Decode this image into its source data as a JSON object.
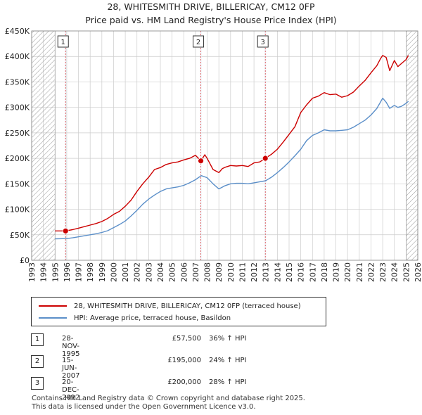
{
  "title_line1": "28, WHITESMITH DRIVE, BILLERICAY, CM12 0FP",
  "title_line2": "Price paid vs. HM Land Registry's House Price Index (HPI)",
  "colors": {
    "red": "#cc0000",
    "blue": "#5b8fc9",
    "grid": "#cccccc",
    "hatch": "#9a9a9a",
    "shade": "#eef2f8"
  },
  "legend": {
    "red_label": "28, WHITESMITH DRIVE, BILLERICAY, CM12 0FP (terraced house)",
    "blue_label": "HPI: Average price, terraced house, Basildon"
  },
  "transactions": [
    {
      "num": "1",
      "date": "28-NOV-1995",
      "price": "£57,500",
      "hpi": "36% ↑ HPI"
    },
    {
      "num": "2",
      "date": "15-JUN-2007",
      "price": "£195,000",
      "hpi": "24% ↑ HPI"
    },
    {
      "num": "3",
      "date": "20-DEC-2012",
      "price": "£200,000",
      "hpi": "28% ↑ HPI"
    }
  ],
  "footer_line1": "Contains HM Land Registry data © Crown copyright and database right 2025.",
  "footer_line2": "This data is licensed under the Open Government Licence v3.0.",
  "chart_data": {
    "type": "line",
    "title": "28, WHITESMITH DRIVE, BILLERICAY, CM12 0FP — Price paid vs. HM Land Registry's House Price Index (HPI)",
    "xlabel": "",
    "ylabel": "",
    "xlim": [
      1993.0,
      2026.0
    ],
    "ylim": [
      0,
      450000
    ],
    "grid": true,
    "legend_position": "below",
    "y_ticks": [
      0,
      50000,
      100000,
      150000,
      200000,
      250000,
      300000,
      350000,
      400000,
      450000
    ],
    "y_tick_labels": [
      "£0",
      "£50K",
      "£100K",
      "£150K",
      "£200K",
      "£250K",
      "£300K",
      "£350K",
      "£400K",
      "£450K"
    ],
    "x_ticks": [
      1993,
      1994,
      1995,
      1996,
      1997,
      1998,
      1999,
      2000,
      2001,
      2002,
      2003,
      2004,
      2005,
      2006,
      2007,
      2008,
      2009,
      2010,
      2011,
      2012,
      2013,
      2014,
      2015,
      2016,
      2017,
      2018,
      2019,
      2020,
      2021,
      2022,
      2023,
      2024,
      2025,
      2026
    ],
    "x_tick_labels": [
      "1993",
      "1994",
      "1995",
      "1996",
      "1997",
      "1998",
      "1999",
      "2000",
      "2001",
      "2002",
      "2003",
      "2004",
      "2005",
      "2006",
      "2007",
      "2008",
      "2009",
      "2010",
      "2011",
      "2012",
      "2013",
      "2014",
      "2015",
      "2016",
      "2017",
      "2018",
      "2019",
      "2020",
      "2021",
      "2022",
      "2023",
      "2024",
      "2025",
      "2026"
    ],
    "hatched_ranges": [
      [
        1993.0,
        1995.0
      ],
      [
        2025.0,
        2026.0
      ]
    ],
    "series": [
      {
        "name": "28, WHITESMITH DRIVE, BILLERICAY, CM12 0FP (terraced house)",
        "color": "#cc0000",
        "x": [
          1995.0,
          1995.9,
          1996.5,
          1997.0,
          1997.5,
          1998.0,
          1998.5,
          1999.0,
          1999.5,
          2000.0,
          2000.5,
          2001.0,
          2001.5,
          2002.0,
          2002.5,
          2003.0,
          2003.5,
          2004.0,
          2004.5,
          2005.0,
          2005.5,
          2006.0,
          2006.5,
          2007.0,
          2007.46,
          2007.8,
          2008.0,
          2008.5,
          2009.0,
          2009.3,
          2009.6,
          2010.0,
          2010.5,
          2011.0,
          2011.5,
          2012.0,
          2012.5,
          2012.97,
          2013.5,
          2014.0,
          2014.5,
          2015.0,
          2015.5,
          2016.0,
          2016.5,
          2017.0,
          2017.5,
          2018.0,
          2018.5,
          2019.0,
          2019.5,
          2020.0,
          2020.5,
          2021.0,
          2021.5,
          2022.0,
          2022.5,
          2022.8,
          2023.0,
          2023.3,
          2023.6,
          2024.0,
          2024.3,
          2024.6,
          2025.0,
          2025.2
        ],
        "values": [
          57500,
          57500,
          60000,
          63000,
          66000,
          69000,
          72000,
          76000,
          82000,
          90000,
          96000,
          106000,
          118000,
          135000,
          150000,
          163000,
          178000,
          182000,
          188000,
          191000,
          193000,
          197000,
          200000,
          206000,
          195000,
          207000,
          200000,
          178000,
          172000,
          180000,
          183000,
          186000,
          185000,
          186000,
          184000,
          191000,
          193000,
          200000,
          208000,
          218000,
          232000,
          247000,
          262000,
          290000,
          305000,
          318000,
          322000,
          329000,
          325000,
          326000,
          320000,
          323000,
          330000,
          342000,
          353000,
          368000,
          382000,
          395000,
          402000,
          398000,
          372000,
          392000,
          380000,
          386000,
          394000,
          402000
        ]
      },
      {
        "name": "HPI: Average price, terraced house, Basildon",
        "color": "#5b8fc9",
        "x": [
          1995.0,
          1996.0,
          1996.5,
          1997.0,
          1997.5,
          1998.0,
          1998.5,
          1999.0,
          1999.5,
          2000.0,
          2000.5,
          2001.0,
          2001.5,
          2002.0,
          2002.5,
          2003.0,
          2003.5,
          2004.0,
          2004.5,
          2005.0,
          2005.5,
          2006.0,
          2006.5,
          2007.0,
          2007.5,
          2008.0,
          2008.5,
          2009.0,
          2009.5,
          2010.0,
          2010.5,
          2011.0,
          2011.5,
          2012.0,
          2012.5,
          2013.0,
          2013.5,
          2014.0,
          2014.5,
          2015.0,
          2015.5,
          2016.0,
          2016.5,
          2017.0,
          2017.5,
          2018.0,
          2018.5,
          2019.0,
          2019.5,
          2020.0,
          2020.5,
          2021.0,
          2021.5,
          2022.0,
          2022.5,
          2022.8,
          2023.0,
          2023.3,
          2023.6,
          2024.0,
          2024.3,
          2024.6,
          2025.0,
          2025.2
        ],
        "values": [
          42000,
          42500,
          44000,
          46000,
          48000,
          50000,
          52000,
          54500,
          58000,
          64000,
          70000,
          77000,
          87000,
          98000,
          110000,
          120000,
          128000,
          135000,
          140000,
          142000,
          144000,
          147000,
          152000,
          158000,
          166000,
          162000,
          150000,
          140000,
          146000,
          150000,
          151000,
          151000,
          150000,
          152000,
          154000,
          156000,
          163000,
          172000,
          182000,
          193000,
          205000,
          218000,
          235000,
          245000,
          250000,
          256000,
          254000,
          254000,
          255000,
          256000,
          261000,
          268000,
          275000,
          285000,
          298000,
          310000,
          318000,
          310000,
          298000,
          304000,
          300000,
          302000,
          308000,
          312000
        ]
      }
    ],
    "sales": [
      {
        "label": "1",
        "x": 1995.9,
        "value": 57500
      },
      {
        "label": "2",
        "x": 2007.46,
        "value": 195000
      },
      {
        "label": "3",
        "x": 2012.97,
        "value": 200000
      }
    ]
  }
}
